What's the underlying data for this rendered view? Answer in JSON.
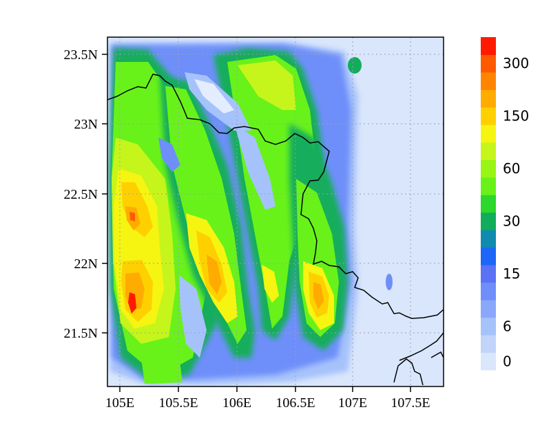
{
  "map": {
    "x_ticks": [
      "105E",
      "105.5E",
      "106E",
      "106.5E",
      "107E",
      "107.5E"
    ],
    "y_ticks": [
      "23.5N",
      "23N",
      "22.5N",
      "22N",
      "21.5N"
    ]
  },
  "colorbar": {
    "colors": [
      "#d9e6fb",
      "#c1d5fb",
      "#a6c2fb",
      "#8aa8fb",
      "#6e8ff9",
      "#5a72f4",
      "#1e66f7",
      "#0f8bb0",
      "#12ad5b",
      "#2bd82b",
      "#68f21a",
      "#98f514",
      "#c6f51b",
      "#f5f511",
      "#ffd000",
      "#ffab00",
      "#ff8500",
      "#ff5a00",
      "#ff1a00"
    ],
    "labels": [
      "0",
      "6",
      "15",
      "30",
      "60",
      "150",
      "300"
    ],
    "label_positions": [
      0,
      2,
      5,
      8,
      11,
      14,
      17
    ]
  }
}
